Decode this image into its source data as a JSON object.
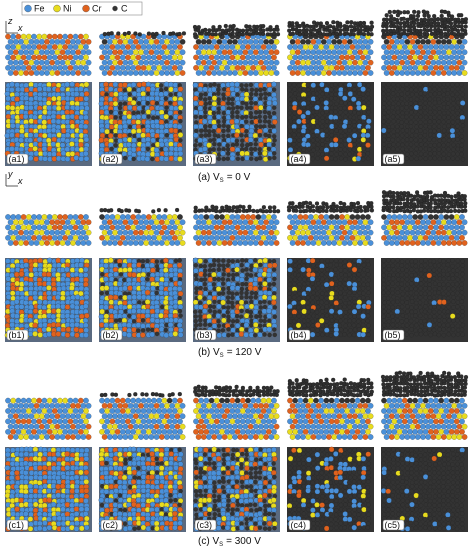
{
  "legend": [
    "Fe",
    "Ni",
    "Cr",
    "C"
  ],
  "axes": {
    "a": {
      "up": "z",
      "right": "x"
    },
    "b": {
      "up": "y",
      "right": "x"
    }
  },
  "groups": [
    {
      "panels": [
        "(a1)",
        "(a2)",
        "(a3)",
        "(a4)",
        "(a5)"
      ],
      "caption": {
        "lead": "(a) V",
        "sub": "S",
        "tail": "= 0 V"
      }
    },
    {
      "panels": [
        "(b1)",
        "(b2)",
        "(b3)",
        "(b4)",
        "(b5)"
      ],
      "caption": {
        "lead": "(b) V",
        "sub": "S",
        "tail": "= 120 V"
      }
    },
    {
      "panels": [
        "(c1)",
        "(c2)",
        "(c3)",
        "(c4)",
        "(c5)"
      ],
      "caption": {
        "lead": "(c) V",
        "sub": "S",
        "tail": "= 300 V"
      }
    }
  ]
}
